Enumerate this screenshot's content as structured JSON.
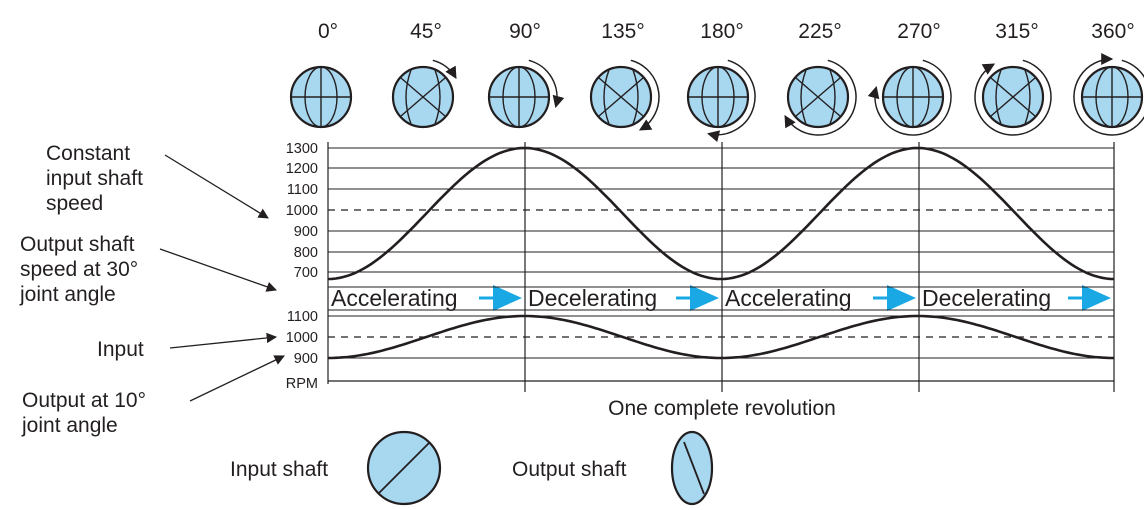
{
  "angles": [
    "0°",
    "45°",
    "90°",
    "135°",
    "180°",
    "225°",
    "270°",
    "315°",
    "360°"
  ],
  "side_labels": {
    "constant_input": [
      "Constant",
      "input shaft",
      "speed"
    ],
    "output_30": [
      "Output shaft",
      "speed at 30°",
      "joint angle"
    ],
    "input": [
      "Input"
    ],
    "output_10": [
      "Output at 10°",
      "joint angle"
    ]
  },
  "upper_axis": {
    "ticks": [
      "1300",
      "1200",
      "1100",
      "1000",
      "900",
      "800",
      "700"
    ]
  },
  "lower_axis": {
    "ticks": [
      "1100",
      "1000",
      "900"
    ],
    "unit": "RPM"
  },
  "phases": [
    "Accelerating",
    "Decelerating",
    "Accelerating",
    "Decelerating"
  ],
  "x_caption": "One complete revolution",
  "legend": {
    "input_label": "Input shaft",
    "output_label": "Output shaft"
  },
  "colors": {
    "ball_fill": "#a8d8f0",
    "arrow_blue": "#1aa8e4",
    "line": "#231f20"
  },
  "chart_data": [
    {
      "type": "line",
      "x": [
        "0°",
        "45°",
        "90°",
        "135°",
        "180°",
        "225°",
        "270°",
        "315°",
        "360°"
      ],
      "series": [
        {
          "values": [
            700,
            1000,
            1300,
            1000,
            700,
            1000,
            1300,
            1000,
            700
          ]
        },
        {
          "values": [
            1000,
            1000,
            1000,
            1000,
            1000,
            1000,
            1000,
            1000,
            1000
          ]
        }
      ],
      "ylim": [
        700,
        1300
      ]
    },
    {
      "type": "line",
      "x": [
        "0°",
        "45°",
        "90°",
        "135°",
        "180°",
        "225°",
        "270°",
        "315°",
        "360°"
      ],
      "series": [
        {
          "values": [
            900,
            1000,
            1100,
            1000,
            900,
            1000,
            1100,
            1000,
            900
          ]
        },
        {
          "values": [
            1000,
            1000,
            1000,
            1000,
            1000,
            1000,
            1000,
            1000,
            1000
          ]
        }
      ],
      "ylim": [
        900,
        1100
      ]
    }
  ]
}
